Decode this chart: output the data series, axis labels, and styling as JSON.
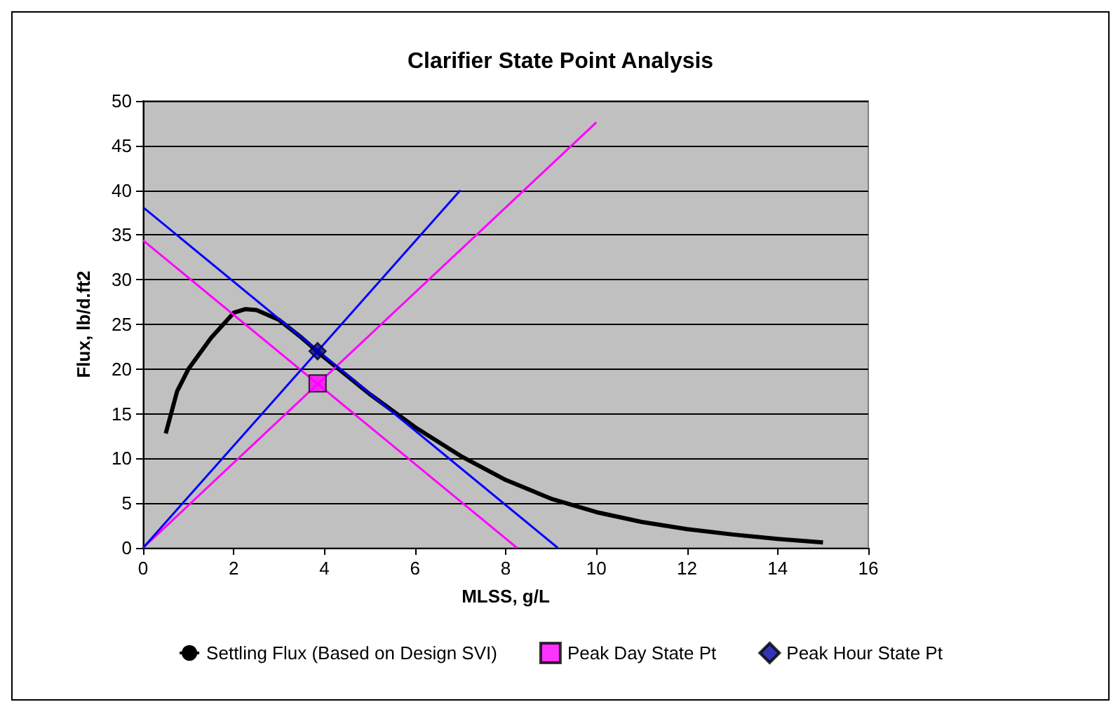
{
  "chart_data": {
    "type": "line",
    "title": "Clarifier State Point Analysis",
    "xlabel": "MLSS, g/L",
    "ylabel": "Flux, lb/d.ft2",
    "xlim": [
      0,
      16
    ],
    "xticks": [
      0,
      2,
      4,
      6,
      8,
      10,
      12,
      14,
      16
    ],
    "ylim": [
      0,
      50
    ],
    "yticks": [
      0,
      5,
      10,
      15,
      20,
      25,
      30,
      35,
      40,
      45,
      50
    ],
    "grid": "y",
    "legend": "bottom",
    "marker": "none",
    "series": [
      {
        "name": "Settling Flux (Based on Design SVI)",
        "color": "#000000",
        "x": [
          0.5,
          0.75,
          1,
          1.5,
          2,
          2.25,
          2.5,
          3,
          3.5,
          4,
          5,
          6,
          7,
          8,
          9,
          10,
          11,
          12,
          13,
          14,
          15
        ],
        "values": [
          12.8,
          17.5,
          20,
          23.5,
          26.3,
          26.7,
          26.6,
          25.5,
          23.5,
          21.3,
          17.2,
          13.5,
          10.3,
          7.6,
          5.5,
          4,
          2.9,
          2.1,
          1.5,
          1,
          0.6
        ]
      },
      {
        "color": "#ff00ff",
        "x": [
          0,
          10
        ],
        "values": [
          0,
          47.6
        ]
      },
      {
        "color": "#ff00ff",
        "x": [
          0,
          8.25
        ],
        "values": [
          34.4,
          0
        ]
      },
      {
        "color": "#0000ff",
        "x": [
          0,
          7
        ],
        "values": [
          0,
          40
        ]
      },
      {
        "color": "#0000ff",
        "x": [
          0,
          9.15
        ],
        "values": [
          38.1,
          0
        ]
      },
      {
        "type": "scatter",
        "name": "Peak Day State Pt",
        "color": "#ff00ff",
        "marker": "square",
        "x": [
          3.85
        ],
        "values": [
          18.4
        ]
      },
      {
        "type": "scatter",
        "name": "Peak Hour State Pt",
        "color": "#0000a0",
        "marker": "diamond",
        "x": [
          3.85
        ],
        "values": [
          22
        ]
      }
    ]
  }
}
